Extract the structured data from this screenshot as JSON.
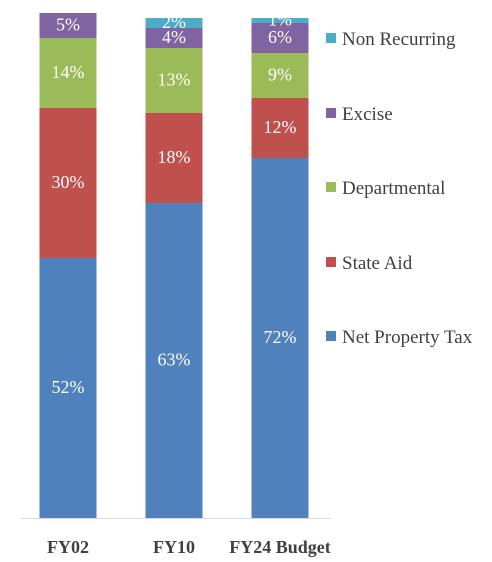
{
  "chart_data": {
    "type": "stacked-bar",
    "categories": [
      "FY02",
      "FY10",
      "FY24 Budget"
    ],
    "ylim": [
      0,
      100
    ],
    "series": [
      {
        "name": "Net Property Tax",
        "color": "#4f81bd",
        "values": [
          52,
          63,
          72
        ],
        "value_labels": [
          "52%",
          "63%",
          "72%"
        ]
      },
      {
        "name": "State Aid",
        "color": "#c0504d",
        "values": [
          30,
          18,
          12
        ],
        "value_labels": [
          "30%",
          "18%",
          "12%"
        ]
      },
      {
        "name": "Departmental",
        "color": "#9bbb59",
        "values": [
          14,
          13,
          9
        ],
        "value_labels": [
          "14%",
          "13%",
          "9%"
        ]
      },
      {
        "name": "Excise",
        "color": "#8064a2",
        "values": [
          5,
          4,
          6
        ],
        "value_labels": [
          "5%",
          "4%",
          "6%"
        ]
      },
      {
        "name": "Non Recurring",
        "color": "#4bacc6",
        "values": [
          null,
          2,
          1
        ],
        "value_labels": [
          null,
          "2%",
          "1%"
        ]
      }
    ]
  }
}
